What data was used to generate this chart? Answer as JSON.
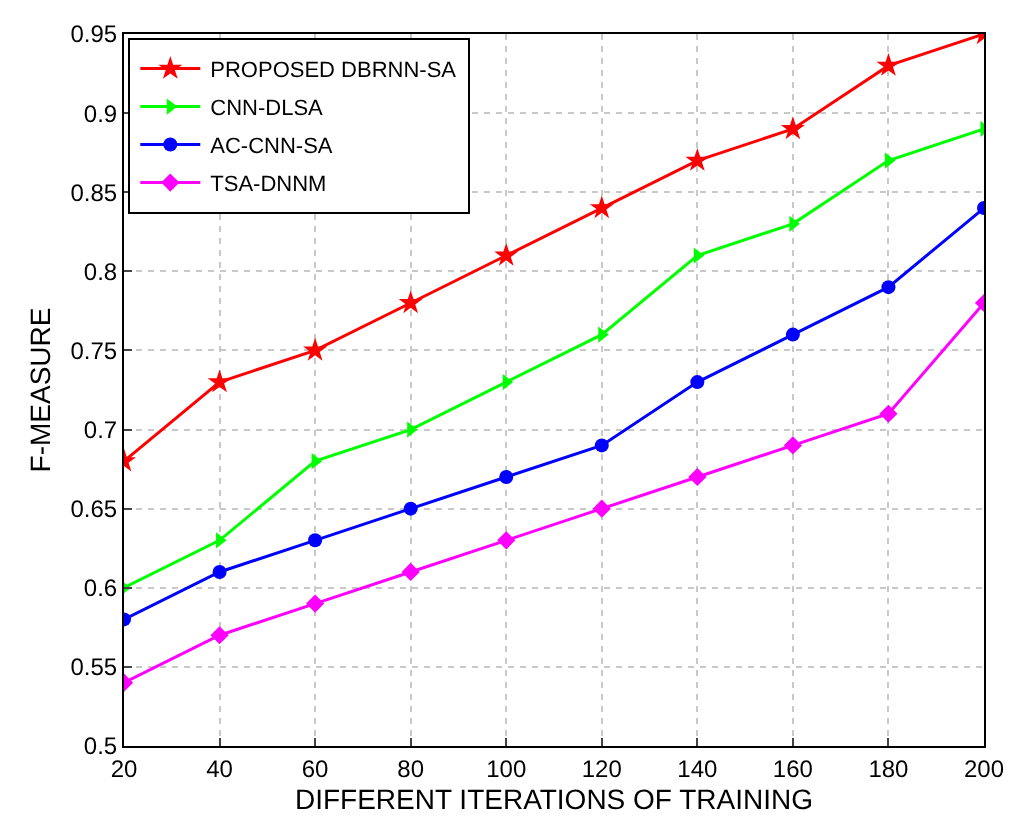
{
  "chart_data": {
    "type": "line",
    "xlabel": "DIFFERENT ITERATIONS OF TRAINING",
    "ylabel": "F-MEASURE",
    "x": [
      20,
      40,
      60,
      80,
      100,
      120,
      140,
      160,
      180,
      200
    ],
    "series": [
      {
        "name": "PROPOSED DBRNN-SA",
        "color": "#ff0000",
        "marker": "star",
        "values": [
          0.68,
          0.73,
          0.75,
          0.78,
          0.81,
          0.84,
          0.87,
          0.89,
          0.93,
          0.95
        ]
      },
      {
        "name": "CNN-DLSA",
        "color": "#00ff00",
        "marker": "triangle",
        "values": [
          0.6,
          0.63,
          0.68,
          0.7,
          0.73,
          0.76,
          0.81,
          0.83,
          0.87,
          0.89
        ]
      },
      {
        "name": "AC-CNN-SA",
        "color": "#0000ff",
        "marker": "circle",
        "values": [
          0.58,
          0.61,
          0.63,
          0.65,
          0.67,
          0.69,
          0.73,
          0.76,
          0.79,
          0.84
        ]
      },
      {
        "name": "TSA-DNNM",
        "color": "#ff00ff",
        "marker": "diamond",
        "values": [
          0.54,
          0.57,
          0.59,
          0.61,
          0.63,
          0.65,
          0.67,
          0.69,
          0.71,
          0.78
        ]
      }
    ],
    "xlim": [
      20,
      200
    ],
    "xticks": [
      20,
      40,
      60,
      80,
      100,
      120,
      140,
      160,
      180,
      200
    ],
    "ylim": [
      0.5,
      0.95
    ],
    "yticks": [
      {
        "value": 0.5,
        "label": "0.5"
      },
      {
        "value": 0.55,
        "label": "0.55"
      },
      {
        "value": 0.6,
        "label": "0.6"
      },
      {
        "value": 0.65,
        "label": "0.65"
      },
      {
        "value": 0.7,
        "label": "0.7"
      },
      {
        "value": 0.75,
        "label": "0.75"
      },
      {
        "value": 0.8,
        "label": "0.8"
      },
      {
        "value": 0.85,
        "label": "0.85"
      },
      {
        "value": 0.9,
        "label": "0.9"
      },
      {
        "value": 0.95,
        "label": "0.95"
      }
    ],
    "grid": true,
    "legend": "top left",
    "line_style": "solid"
  }
}
